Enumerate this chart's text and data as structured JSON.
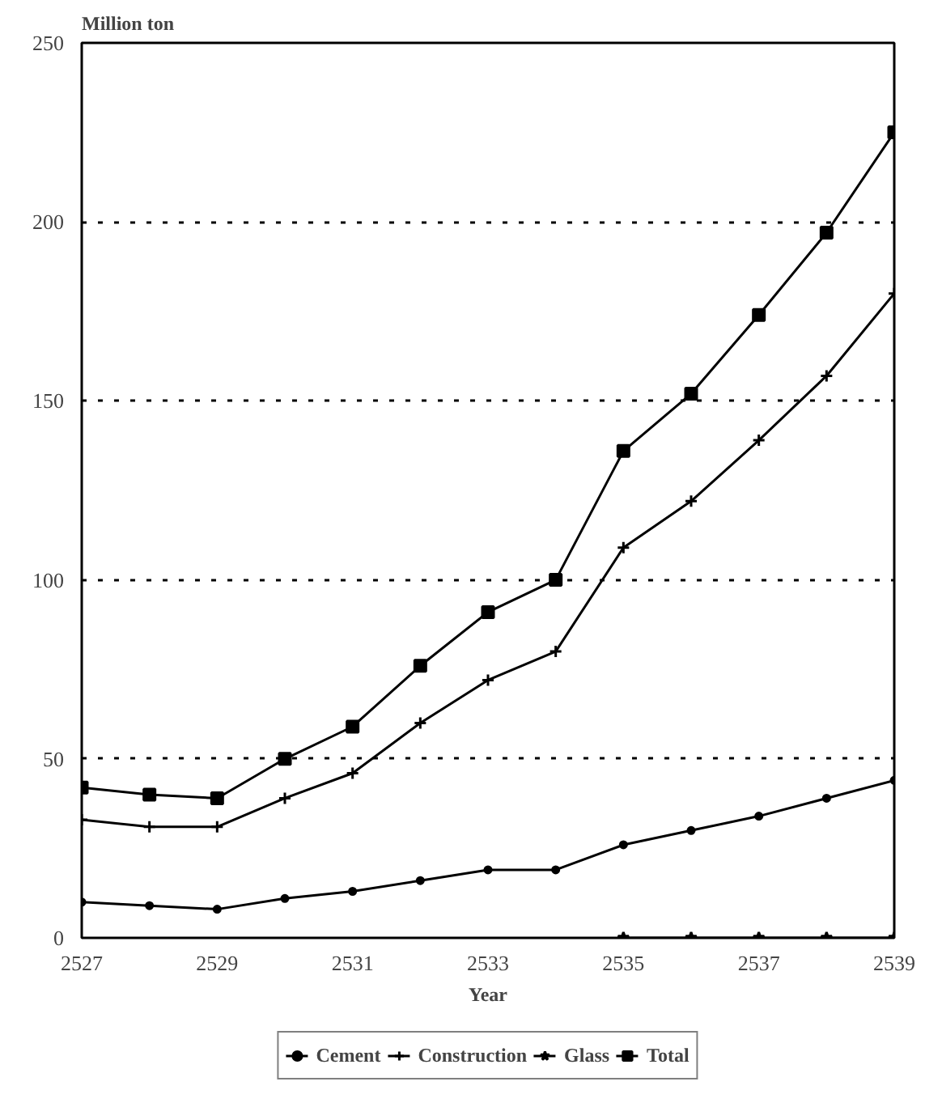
{
  "chart_data": {
    "type": "line",
    "ylabel": "Million ton",
    "xlabel": "Year",
    "x": [
      2527,
      2528,
      2529,
      2530,
      2531,
      2532,
      2533,
      2534,
      2535,
      2536,
      2537,
      2538,
      2539
    ],
    "xlim": [
      2527,
      2539
    ],
    "xticks": [
      2527,
      2529,
      2531,
      2533,
      2535,
      2537,
      2539
    ],
    "ylim": [
      0,
      250
    ],
    "yticks": [
      0,
      50,
      100,
      150,
      200,
      250
    ],
    "grid": "y",
    "legend": "bottom",
    "series": [
      {
        "name": "Cement",
        "color": "#000000",
        "marker": "circle",
        "values": [
          10,
          9,
          8,
          11,
          13,
          16,
          19,
          19,
          26,
          30,
          34,
          39,
          44
        ]
      },
      {
        "name": "Construction",
        "color": "#000000",
        "marker": "cross",
        "values": [
          33,
          31,
          31,
          39,
          46,
          60,
          72,
          80,
          109,
          122,
          139,
          157,
          180
        ]
      },
      {
        "name": "Glass",
        "color": "#000000",
        "marker": "star",
        "values": [
          null,
          null,
          null,
          null,
          null,
          null,
          null,
          null,
          0,
          0,
          0,
          0,
          0
        ]
      },
      {
        "name": "Total",
        "color": "#000000",
        "marker": "square",
        "values": [
          42,
          40,
          39,
          50,
          59,
          76,
          91,
          100,
          136,
          152,
          174,
          197,
          225
        ]
      }
    ]
  }
}
